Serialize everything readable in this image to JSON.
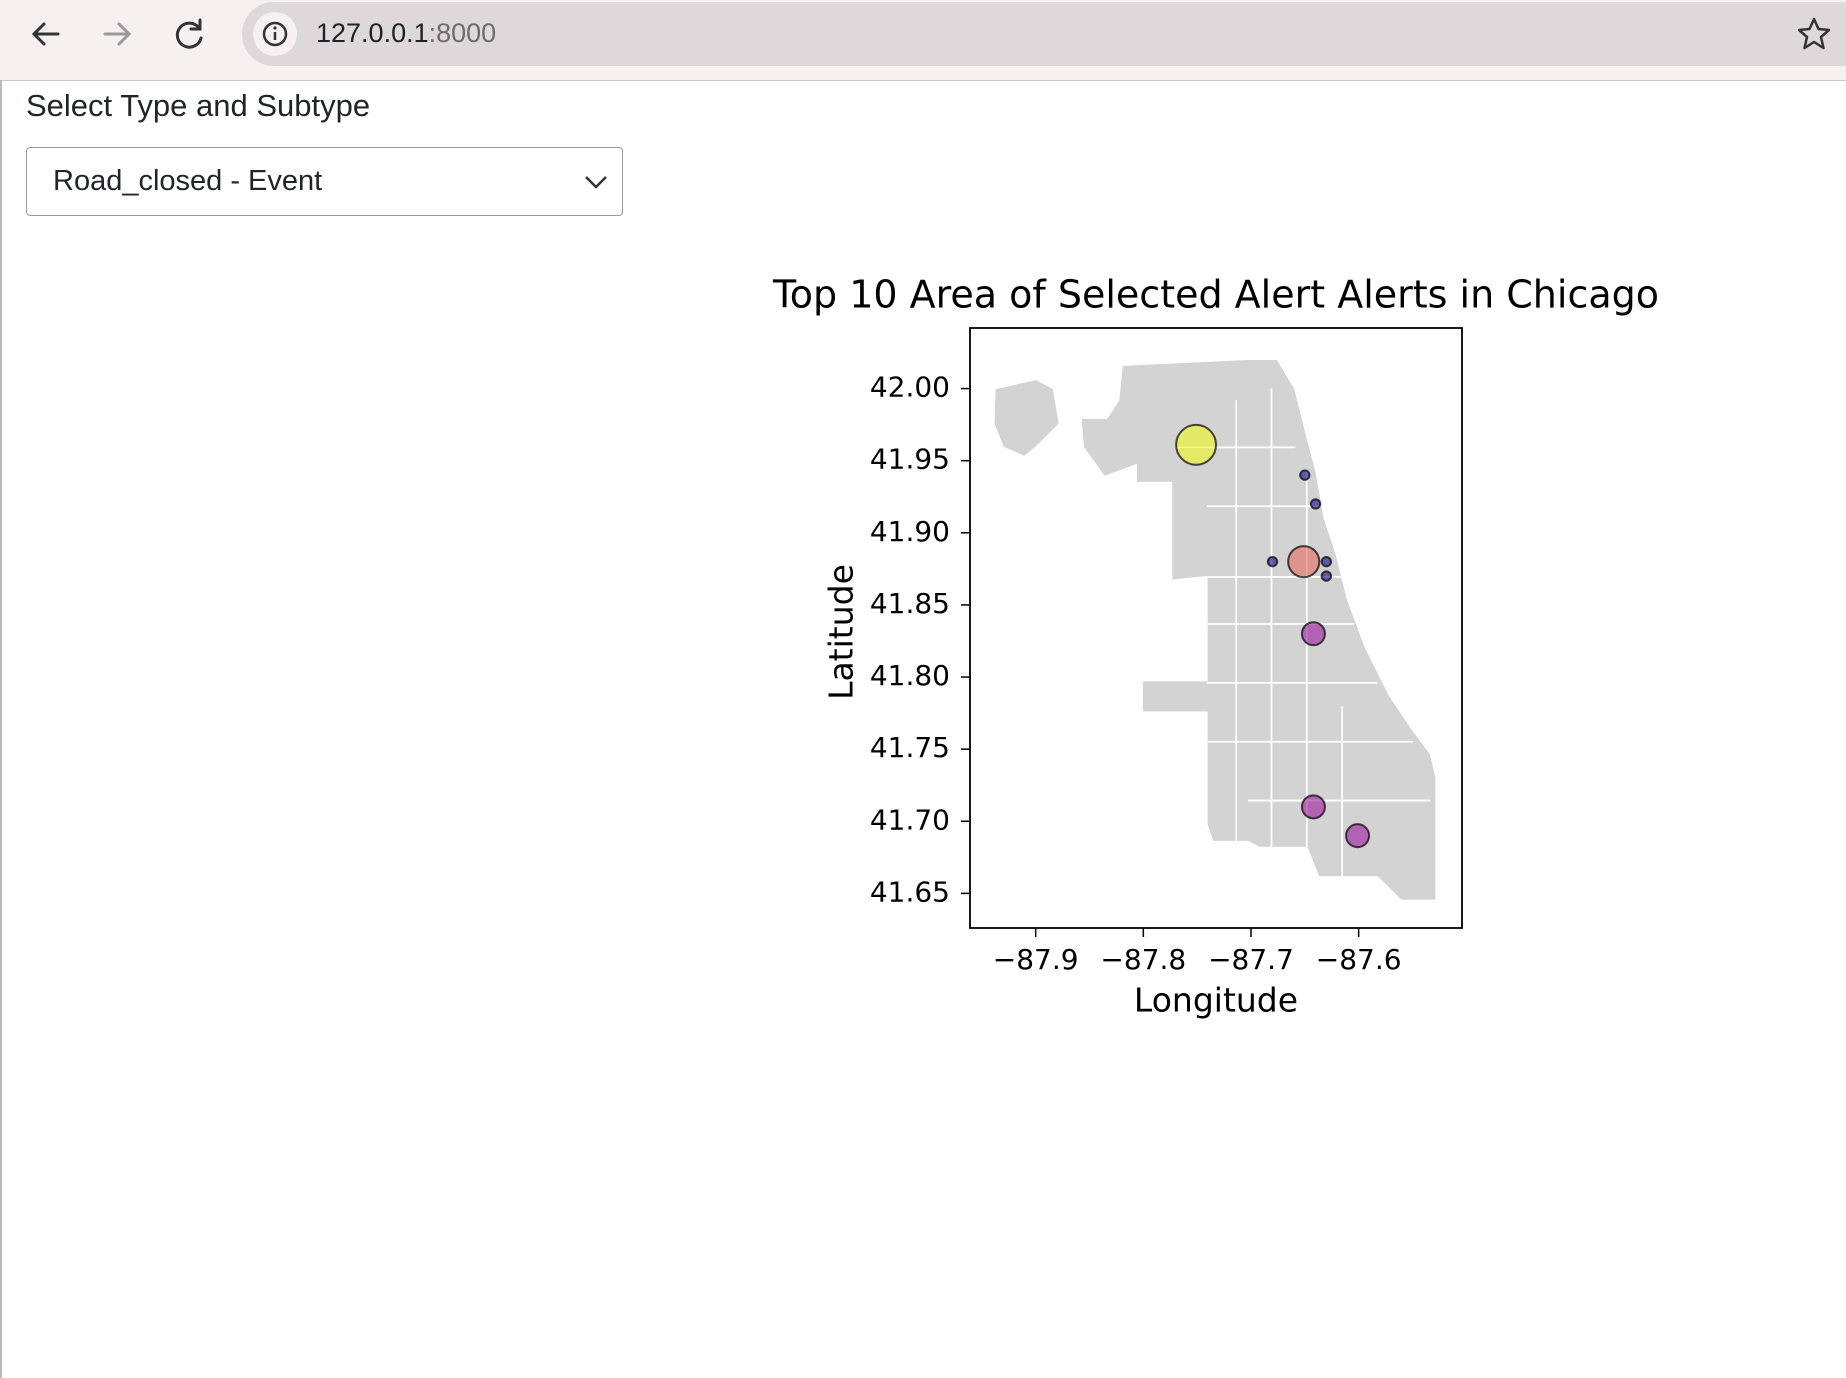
{
  "browser": {
    "url_host": "127.0.0.1",
    "url_port": ":8000"
  },
  "form": {
    "label": "Select Type and Subtype",
    "selected": "Road_closed - Event"
  },
  "chart_data": {
    "type": "scatter",
    "title": "Top 10 Area of Selected Alert Alerts in Chicago",
    "xlabel": "Longitude",
    "ylabel": "Latitude",
    "x": [
      -87.751,
      -87.651,
      -87.642,
      -87.642,
      -87.601,
      -87.65,
      -87.64,
      -87.68,
      -87.63,
      -87.63
    ],
    "values": [
      41.961,
      41.88,
      41.83,
      41.71,
      41.69,
      41.94,
      41.92,
      41.88,
      41.88,
      41.87
    ],
    "sizes": [
      18,
      11,
      6,
      6,
      6,
      1,
      1,
      1,
      1,
      1
    ],
    "colors": [
      "#f0f921",
      "#e56b5d",
      "#9c179e",
      "#9c179e",
      "#9c179e",
      "#0d0887",
      "#0d0887",
      "#0d0887",
      "#0d0887",
      "#0d0887"
    ],
    "xlim": [
      -87.961,
      -87.504
    ],
    "ylim": [
      41.626,
      42.042
    ],
    "xticks": [
      {
        "value": -87.9,
        "label": "−87.9"
      },
      {
        "value": -87.8,
        "label": "−87.8"
      },
      {
        "value": -87.7,
        "label": "−87.7"
      },
      {
        "value": -87.6,
        "label": "−87.6"
      }
    ],
    "yticks": [
      {
        "value": 41.65,
        "label": "41.65"
      },
      {
        "value": 41.7,
        "label": "41.70"
      },
      {
        "value": 41.75,
        "label": "41.75"
      },
      {
        "value": 41.8,
        "label": "41.80"
      },
      {
        "value": 41.85,
        "label": "41.85"
      },
      {
        "value": 41.9,
        "label": "41.90"
      },
      {
        "value": 41.95,
        "label": "41.95"
      },
      {
        "value": 42.0,
        "label": "42.00"
      }
    ]
  }
}
